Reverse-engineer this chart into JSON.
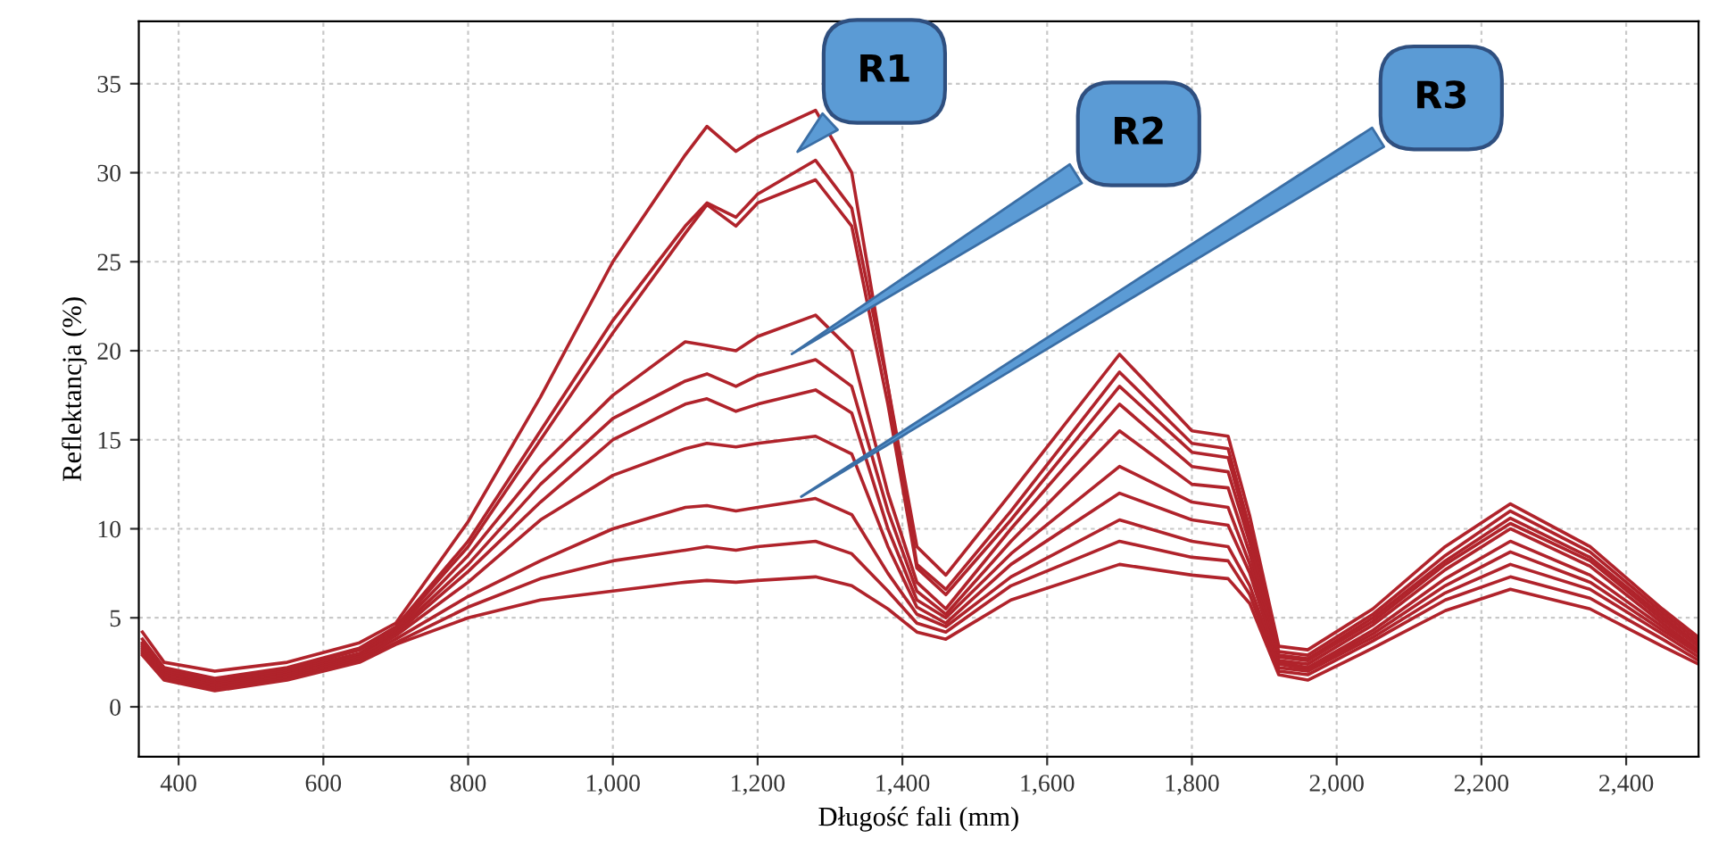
{
  "chart_data": {
    "type": "line",
    "xlabel": "Długość fali (mm)",
    "ylabel": "Reflektancja (%)",
    "xlim": [
      345,
      2500
    ],
    "ylim": [
      -2.8,
      38.5
    ],
    "xticks": [
      400,
      600,
      800,
      {
        "value": 1000,
        "label": "1,000"
      },
      {
        "value": 1200,
        "label": "1,200"
      },
      {
        "value": 1400,
        "label": "1,400"
      },
      {
        "value": 1600,
        "label": "1,600"
      },
      {
        "value": 1800,
        "label": "1,800"
      },
      {
        "value": 2000,
        "label": "2,000"
      },
      {
        "value": 2200,
        "label": "2,200"
      },
      {
        "value": 2400,
        "label": "2,400"
      }
    ],
    "yticks": [
      0,
      5,
      10,
      15,
      20,
      25,
      30,
      35
    ],
    "grid": true,
    "legend": false,
    "marker": "none",
    "line_style": "solid",
    "x": [
      350,
      380,
      450,
      550,
      650,
      700,
      800,
      900,
      1000,
      1100,
      1130,
      1170,
      1200,
      1280,
      1330,
      1380,
      1420,
      1460,
      1550,
      1700,
      1800,
      1850,
      1880,
      1920,
      1960,
      2050,
      2150,
      2240,
      2350,
      2450,
      2500
    ],
    "series": [
      {
        "color": "#b0232b",
        "values": [
          4.2,
          2.5,
          2.0,
          2.5,
          3.6,
          4.7,
          10.4,
          17.4,
          25.0,
          31.0,
          32.6,
          31.2,
          32.0,
          33.5,
          30.0,
          18.0,
          9.0,
          7.4,
          12.0,
          19.8,
          15.5,
          15.2,
          10.7,
          3.4,
          3.2,
          5.5,
          9.0,
          11.4,
          9.0,
          5.5,
          3.9
        ]
      },
      {
        "color": "#b0232b",
        "values": [
          3.8,
          2.2,
          1.6,
          2.2,
          3.3,
          4.5,
          9.3,
          15.5,
          21.7,
          27.0,
          28.3,
          27.5,
          28.8,
          30.7,
          28.0,
          18.0,
          8.0,
          6.6,
          11.0,
          18.8,
          14.8,
          14.5,
          10.0,
          3.1,
          2.9,
          5.2,
          8.5,
          11.0,
          8.7,
          5.3,
          3.7
        ]
      },
      {
        "color": "#b0232b",
        "values": [
          3.6,
          2.1,
          1.5,
          2.1,
          3.2,
          4.4,
          9.0,
          15.0,
          21.0,
          26.6,
          28.2,
          27.0,
          28.3,
          29.6,
          27.0,
          17.0,
          7.8,
          6.3,
          10.5,
          18.0,
          14.3,
          14.0,
          9.6,
          2.9,
          2.7,
          5.0,
          8.2,
          10.6,
          8.4,
          5.1,
          3.5
        ]
      },
      {
        "color": "#b0232b",
        "values": [
          3.5,
          2.0,
          1.4,
          2.0,
          3.0,
          4.3,
          8.5,
          13.5,
          17.5,
          20.5,
          20.3,
          20.0,
          20.8,
          22.0,
          20.0,
          12.0,
          7.0,
          5.5,
          10.0,
          17.0,
          13.5,
          13.2,
          9.2,
          2.8,
          2.6,
          4.8,
          8.0,
          10.3,
          8.2,
          4.9,
          3.4
        ]
      },
      {
        "color": "#b0232b",
        "values": [
          3.4,
          1.9,
          1.3,
          1.9,
          2.9,
          4.2,
          8.0,
          12.5,
          16.2,
          18.3,
          18.7,
          18.0,
          18.6,
          19.5,
          18.0,
          11.0,
          6.5,
          5.2,
          9.3,
          15.5,
          12.5,
          12.3,
          8.6,
          2.6,
          2.4,
          4.6,
          7.7,
          10.0,
          7.9,
          4.7,
          3.2
        ]
      },
      {
        "color": "#b0232b",
        "values": [
          3.3,
          1.8,
          1.2,
          1.8,
          2.8,
          4.1,
          7.6,
          11.5,
          15.0,
          17.0,
          17.3,
          16.6,
          17.0,
          17.8,
          16.5,
          10.0,
          6.0,
          5.0,
          8.6,
          13.5,
          11.5,
          11.2,
          8.0,
          2.5,
          2.2,
          4.3,
          7.2,
          9.3,
          7.4,
          4.5,
          3.1
        ]
      },
      {
        "color": "#b0232b",
        "values": [
          3.2,
          1.8,
          1.2,
          1.8,
          2.8,
          4.0,
          7.0,
          10.5,
          13.0,
          14.5,
          14.8,
          14.6,
          14.8,
          15.2,
          14.2,
          9.0,
          5.6,
          4.7,
          8.0,
          12.0,
          10.5,
          10.2,
          7.5,
          2.4,
          2.1,
          4.1,
          6.8,
          8.7,
          7.0,
          4.3,
          3.0
        ]
      },
      {
        "color": "#b0232b",
        "values": [
          3.1,
          1.7,
          1.1,
          1.7,
          2.7,
          3.8,
          6.2,
          8.2,
          10.0,
          11.2,
          11.3,
          11.0,
          11.2,
          11.7,
          10.8,
          7.5,
          5.2,
          4.5,
          7.3,
          10.5,
          9.3,
          9.0,
          6.8,
          2.2,
          2.0,
          3.9,
          6.4,
          8.0,
          6.6,
          4.1,
          2.8
        ]
      },
      {
        "color": "#b0232b",
        "values": [
          3.0,
          1.6,
          1.0,
          1.6,
          2.6,
          3.6,
          5.6,
          7.2,
          8.2,
          8.8,
          9.0,
          8.8,
          9.0,
          9.3,
          8.6,
          6.5,
          4.7,
          4.2,
          6.8,
          9.3,
          8.4,
          8.2,
          6.3,
          2.0,
          1.8,
          3.7,
          6.0,
          7.3,
          6.1,
          3.8,
          2.6
        ]
      },
      {
        "color": "#b0232b",
        "values": [
          2.9,
          1.5,
          0.9,
          1.5,
          2.5,
          3.5,
          5.0,
          6.0,
          6.5,
          7.0,
          7.1,
          7.0,
          7.1,
          7.3,
          6.8,
          5.5,
          4.2,
          3.8,
          6.0,
          8.0,
          7.4,
          7.2,
          5.8,
          1.8,
          1.5,
          3.3,
          5.4,
          6.6,
          5.5,
          3.4,
          2.4
        ]
      }
    ],
    "annotations": [
      "R1",
      "R2",
      "R3"
    ]
  }
}
